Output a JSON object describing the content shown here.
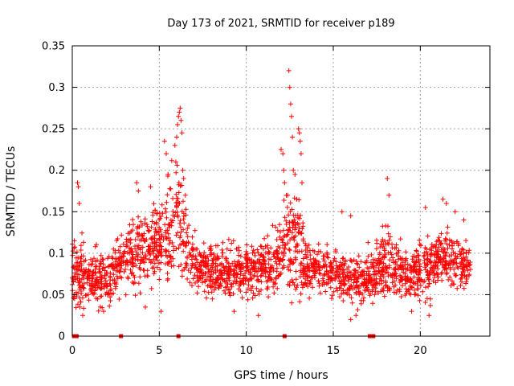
{
  "chart_data": {
    "type": "scatter",
    "title": "Day 173 of 2021, SRMTID for receiver p189",
    "xlabel": "GPS time / hours",
    "ylabel": "SRMTID / TECUs",
    "xlim": [
      0,
      24
    ],
    "ylim": [
      0,
      0.35
    ],
    "xticks": [
      0,
      5,
      10,
      15,
      20
    ],
    "xtick_labels": [
      "0",
      "5",
      "10",
      "15",
      "20"
    ],
    "yticks": [
      0,
      0.05,
      0.1,
      0.15,
      0.2,
      0.25,
      0.3,
      0.35
    ],
    "ytick_labels": [
      "0",
      "0.05",
      "0.1",
      "0.15",
      "0.2",
      "0.25",
      "0.3",
      "0.35"
    ],
    "grid": true,
    "marker": "plus",
    "color": "#ff0000",
    "markers_at_zero": [
      0.1,
      0.25,
      2.8,
      6.1,
      12.2,
      17.1,
      17.3
    ],
    "density_profile": [
      [
        0.0,
        0.08,
        0.025
      ],
      [
        0.5,
        0.075,
        0.03
      ],
      [
        1.0,
        0.07,
        0.02
      ],
      [
        1.5,
        0.065,
        0.02
      ],
      [
        2.0,
        0.07,
        0.02
      ],
      [
        2.5,
        0.08,
        0.025
      ],
      [
        3.0,
        0.095,
        0.025
      ],
      [
        3.5,
        0.1,
        0.025
      ],
      [
        4.0,
        0.1,
        0.03
      ],
      [
        4.5,
        0.11,
        0.03
      ],
      [
        5.0,
        0.115,
        0.035
      ],
      [
        5.5,
        0.125,
        0.04
      ],
      [
        6.0,
        0.15,
        0.05
      ],
      [
        6.3,
        0.14,
        0.05
      ],
      [
        6.6,
        0.11,
        0.03
      ],
      [
        7.0,
        0.085,
        0.02
      ],
      [
        7.5,
        0.08,
        0.02
      ],
      [
        8.0,
        0.08,
        0.02
      ],
      [
        8.5,
        0.08,
        0.02
      ],
      [
        9.0,
        0.075,
        0.02
      ],
      [
        9.5,
        0.075,
        0.02
      ],
      [
        10.0,
        0.08,
        0.025
      ],
      [
        10.5,
        0.08,
        0.02
      ],
      [
        11.0,
        0.085,
        0.02
      ],
      [
        11.5,
        0.085,
        0.025
      ],
      [
        12.0,
        0.1,
        0.035
      ],
      [
        12.5,
        0.12,
        0.045
      ],
      [
        13.0,
        0.11,
        0.04
      ],
      [
        13.5,
        0.08,
        0.025
      ],
      [
        14.0,
        0.08,
        0.02
      ],
      [
        14.5,
        0.08,
        0.02
      ],
      [
        15.0,
        0.075,
        0.02
      ],
      [
        15.5,
        0.075,
        0.02
      ],
      [
        16.0,
        0.07,
        0.02
      ],
      [
        16.5,
        0.065,
        0.02
      ],
      [
        17.0,
        0.07,
        0.02
      ],
      [
        17.5,
        0.08,
        0.025
      ],
      [
        18.0,
        0.09,
        0.03
      ],
      [
        18.5,
        0.085,
        0.025
      ],
      [
        19.0,
        0.075,
        0.02
      ],
      [
        19.5,
        0.075,
        0.02
      ],
      [
        20.0,
        0.08,
        0.025
      ],
      [
        20.5,
        0.085,
        0.025
      ],
      [
        21.0,
        0.09,
        0.025
      ],
      [
        21.5,
        0.095,
        0.025
      ],
      [
        22.0,
        0.09,
        0.025
      ],
      [
        22.5,
        0.085,
        0.02
      ],
      [
        22.9,
        0.08,
        0.02
      ]
    ],
    "peaks": [
      [
        0.3,
        0.185
      ],
      [
        0.35,
        0.18
      ],
      [
        0.4,
        0.16
      ],
      [
        3.7,
        0.185
      ],
      [
        3.8,
        0.175
      ],
      [
        4.5,
        0.18
      ],
      [
        5.3,
        0.235
      ],
      [
        5.4,
        0.22
      ],
      [
        5.5,
        0.195
      ],
      [
        5.9,
        0.23
      ],
      [
        5.95,
        0.21
      ],
      [
        6.0,
        0.24
      ],
      [
        6.05,
        0.255
      ],
      [
        6.1,
        0.265
      ],
      [
        6.15,
        0.27
      ],
      [
        6.2,
        0.275
      ],
      [
        6.25,
        0.26
      ],
      [
        6.3,
        0.245
      ],
      [
        6.35,
        0.2
      ],
      [
        6.4,
        0.19
      ],
      [
        6.5,
        0.17
      ],
      [
        12.0,
        0.225
      ],
      [
        12.1,
        0.22
      ],
      [
        12.15,
        0.2
      ],
      [
        12.2,
        0.185
      ],
      [
        12.45,
        0.32
      ],
      [
        12.5,
        0.3
      ],
      [
        12.55,
        0.28
      ],
      [
        12.6,
        0.265
      ],
      [
        12.65,
        0.24
      ],
      [
        12.7,
        0.2
      ],
      [
        12.8,
        0.195
      ],
      [
        13.0,
        0.25
      ],
      [
        13.05,
        0.245
      ],
      [
        13.1,
        0.235
      ],
      [
        13.15,
        0.22
      ],
      [
        13.2,
        0.185
      ],
      [
        12.9,
        0.165
      ],
      [
        15.5,
        0.15
      ],
      [
        16.0,
        0.145
      ],
      [
        18.1,
        0.19
      ],
      [
        18.2,
        0.17
      ],
      [
        20.3,
        0.155
      ],
      [
        21.3,
        0.165
      ],
      [
        21.5,
        0.16
      ],
      [
        22.0,
        0.15
      ],
      [
        22.5,
        0.14
      ],
      [
        0.6,
        0.025
      ],
      [
        1.8,
        0.03
      ],
      [
        4.2,
        0.035
      ],
      [
        5.1,
        0.03
      ],
      [
        9.3,
        0.03
      ],
      [
        10.7,
        0.025
      ],
      [
        16.0,
        0.02
      ],
      [
        16.3,
        0.025
      ],
      [
        19.5,
        0.03
      ],
      [
        20.5,
        0.025
      ]
    ]
  }
}
